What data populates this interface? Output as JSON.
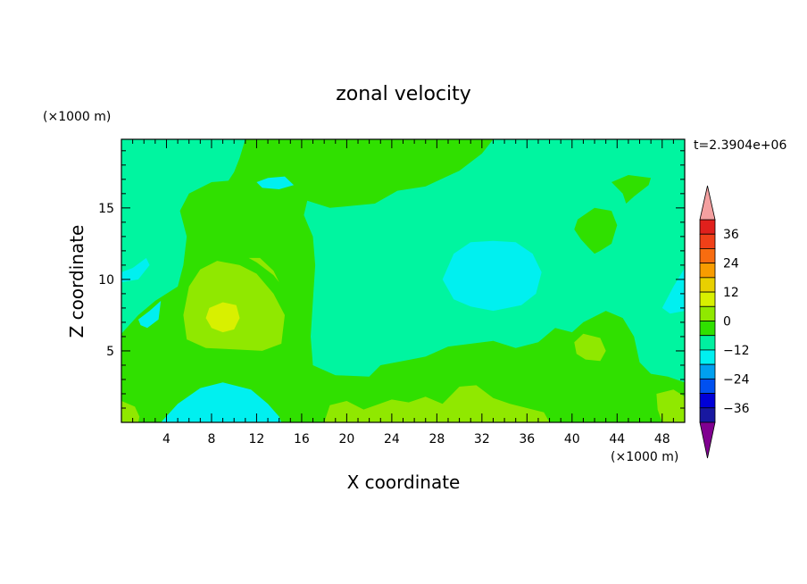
{
  "chart_data": {
    "type": "heatmap",
    "title": "zonal velocity",
    "time_label": "t=2.3904e+06",
    "xlabel": "X coordinate",
    "ylabel": "Z coordinate",
    "x_unit": "(×1000 m)",
    "y_unit": "(×1000 m)",
    "xlim": [
      0,
      50
    ],
    "ylim": [
      0,
      19.8
    ],
    "x_ticks": [
      4,
      8,
      12,
      16,
      20,
      24,
      28,
      32,
      36,
      40,
      44,
      48
    ],
    "y_ticks": [
      5,
      10,
      15
    ],
    "colorbar": {
      "labels": [
        "36",
        "24",
        "12",
        "0",
        "−12",
        "−24",
        "−36"
      ],
      "label_values": [
        36,
        24,
        12,
        0,
        -12,
        -24,
        -36
      ],
      "levels": [
        42,
        36,
        30,
        24,
        18,
        12,
        6,
        0,
        -6,
        -12,
        -18,
        -24,
        -30,
        -36,
        -42
      ],
      "colors": [
        "#e0201c",
        "#f04018",
        "#f86c10",
        "#f89c00",
        "#e8d000",
        "#d8f000",
        "#90e800",
        "#30e000",
        "#00f0a0",
        "#00f0f0",
        "#00a0f0",
        "#0050f0",
        "#0000d8",
        "#1818a0",
        "#501890"
      ],
      "over_color": "#f4a0a0",
      "under_color": "#800090"
    },
    "background_level_color": "#00f5a0",
    "regions": [
      {
        "value": 0,
        "color": "#30e000",
        "points": [
          [
            0,
            6.2
          ],
          [
            1.5,
            7.5
          ],
          [
            3,
            8.5
          ],
          [
            5,
            9.5
          ],
          [
            5.5,
            11
          ],
          [
            5.8,
            13
          ],
          [
            5.2,
            14.8
          ],
          [
            6,
            16
          ],
          [
            8,
            16.8
          ],
          [
            9.5,
            16.9
          ],
          [
            10,
            17.5
          ],
          [
            10.5,
            18.5
          ],
          [
            11,
            19.8
          ],
          [
            33,
            19.8
          ],
          [
            32,
            18.8
          ],
          [
            30,
            17.6
          ],
          [
            27,
            16.5
          ],
          [
            24.5,
            16.2
          ],
          [
            22.5,
            15.3
          ],
          [
            18.5,
            15
          ],
          [
            16.5,
            15.5
          ],
          [
            16.2,
            14.5
          ],
          [
            17,
            13
          ],
          [
            17.2,
            11
          ],
          [
            17,
            8.5
          ],
          [
            16.8,
            6
          ],
          [
            17,
            4
          ],
          [
            19,
            3.3
          ],
          [
            22,
            3.2
          ],
          [
            23,
            4
          ],
          [
            25,
            4.3
          ],
          [
            27,
            4.6
          ],
          [
            29,
            5.3
          ],
          [
            33,
            5.7
          ],
          [
            35,
            5.2
          ],
          [
            37,
            5.6
          ],
          [
            38.5,
            6.6
          ],
          [
            40,
            6.3
          ],
          [
            41,
            7
          ],
          [
            43,
            7.8
          ],
          [
            44.5,
            7.3
          ],
          [
            45.5,
            6
          ],
          [
            46,
            4.2
          ],
          [
            47,
            3.4
          ],
          [
            48.5,
            3.2
          ],
          [
            50,
            2.8
          ],
          [
            50,
            0
          ],
          [
            0,
            0
          ]
        ]
      },
      {
        "value": 0,
        "color": "#30e000",
        "points": [
          [
            40.5,
            14.2
          ],
          [
            42,
            15
          ],
          [
            43.5,
            14.8
          ],
          [
            44,
            13.8
          ],
          [
            43.5,
            12.5
          ],
          [
            42.5,
            12
          ],
          [
            42,
            11.8
          ],
          [
            41.5,
            12.2
          ],
          [
            40.8,
            12.8
          ],
          [
            40.2,
            13.5
          ]
        ]
      },
      {
        "value": 0,
        "color": "#30e000",
        "points": [
          [
            43.5,
            16.8
          ],
          [
            45,
            17.3
          ],
          [
            47,
            17.1
          ],
          [
            46.8,
            16.6
          ],
          [
            45.5,
            15.8
          ],
          [
            44.8,
            15.3
          ],
          [
            44.5,
            16
          ]
        ]
      },
      {
        "value": 0,
        "color": "#30e000",
        "points": [
          [
            0,
            17
          ]
        ],
        "hidden": true
      },
      {
        "value": 6,
        "color": "#90e800",
        "points": [
          [
            5.5,
            7.5
          ],
          [
            6,
            9.5
          ],
          [
            7,
            10.7
          ],
          [
            8.5,
            11.3
          ],
          [
            10.5,
            11
          ],
          [
            12,
            10.4
          ],
          [
            13.5,
            9
          ],
          [
            14.5,
            7.5
          ],
          [
            14.2,
            5.5
          ],
          [
            12.5,
            5
          ],
          [
            10,
            5.1
          ],
          [
            7.5,
            5.2
          ],
          [
            5.8,
            5.8
          ]
        ]
      },
      {
        "value": 12,
        "color": "#d8f000",
        "points": [
          [
            7.5,
            7.3
          ],
          [
            7.8,
            8
          ],
          [
            9,
            8.4
          ],
          [
            10.2,
            8.2
          ],
          [
            10.5,
            7.3
          ],
          [
            10,
            6.5
          ],
          [
            9,
            6.3
          ],
          [
            8,
            6.6
          ]
        ]
      },
      {
        "value": 6,
        "color": "#90e800",
        "points": [
          [
            11.3,
            11.5
          ],
          [
            12,
            11.2
          ],
          [
            13.5,
            10.3
          ],
          [
            14,
            9.8
          ],
          [
            13.5,
            10.6
          ],
          [
            12.3,
            11.5
          ]
        ]
      },
      {
        "value": 6,
        "color": "#90e800",
        "points": [
          [
            40.2,
            5.6
          ],
          [
            41,
            6.2
          ],
          [
            42.5,
            5.9
          ],
          [
            43,
            5
          ],
          [
            42.5,
            4.3
          ],
          [
            41.2,
            4.4
          ],
          [
            40.4,
            4.8
          ]
        ]
      },
      {
        "value": 6,
        "color": "#90e800",
        "points": [
          [
            18,
            0
          ],
          [
            18.5,
            1.2
          ],
          [
            20,
            1.5
          ],
          [
            21.5,
            0.9
          ],
          [
            24,
            1.6
          ],
          [
            25.5,
            1.4
          ],
          [
            27,
            1.8
          ],
          [
            28.5,
            1.3
          ],
          [
            30,
            2.5
          ],
          [
            31.5,
            2.6
          ],
          [
            33,
            1.7
          ],
          [
            34.5,
            1.3
          ],
          [
            36,
            1
          ],
          [
            37.5,
            0.7
          ],
          [
            38,
            0
          ]
        ]
      },
      {
        "value": 6,
        "color": "#90e800",
        "points": [
          [
            0,
            1.5
          ],
          [
            1.2,
            1.1
          ],
          [
            1.6,
            0.4
          ],
          [
            1.5,
            0
          ]
        ],
        "anchor": "corner"
      },
      {
        "value": 6,
        "color": "#90e800",
        "points": [
          [
            47.5,
            2
          ],
          [
            49,
            2.3
          ],
          [
            50,
            1.8
          ],
          [
            50,
            0
          ],
          [
            48,
            0
          ],
          [
            47.6,
            0.9
          ]
        ]
      },
      {
        "value": -6,
        "color": "#00f0f0",
        "points": [
          [
            3.5,
            0
          ],
          [
            5,
            1.3
          ],
          [
            7,
            2.4
          ],
          [
            9,
            2.8
          ],
          [
            11.5,
            2.3
          ],
          [
            13,
            1.3
          ],
          [
            14,
            0.4
          ],
          [
            14.2,
            0
          ]
        ]
      },
      {
        "value": -6,
        "color": "#00f0f0",
        "points": [
          [
            1.5,
            7.2
          ],
          [
            2.5,
            7.8
          ],
          [
            3.5,
            8.5
          ],
          [
            3.3,
            7.2
          ],
          [
            2.3,
            6.6
          ],
          [
            1.7,
            6.8
          ]
        ]
      },
      {
        "value": -6,
        "color": "#00f0f0",
        "points": [
          [
            0,
            10.5
          ],
          [
            1,
            10.8
          ],
          [
            2.2,
            11.5
          ],
          [
            2.5,
            11
          ],
          [
            1.5,
            10
          ],
          [
            0,
            9.8
          ]
        ]
      },
      {
        "value": -6,
        "color": "#00f0f0",
        "points": [
          [
            28.5,
            10
          ],
          [
            29.5,
            11.8
          ],
          [
            31,
            12.6
          ],
          [
            33,
            12.7
          ],
          [
            35,
            12.6
          ],
          [
            36.5,
            11.8
          ],
          [
            37.3,
            10.5
          ],
          [
            36.8,
            9
          ],
          [
            35.5,
            8.2
          ],
          [
            33,
            7.8
          ],
          [
            31,
            8.1
          ],
          [
            29.5,
            8.6
          ]
        ]
      },
      {
        "value": -6,
        "color": "#00f0f0",
        "points": [
          [
            48,
            8
          ],
          [
            49,
            9.5
          ],
          [
            50,
            10.8
          ],
          [
            50,
            7.8
          ],
          [
            48.7,
            7.6
          ]
        ]
      },
      {
        "value": -6,
        "color": "#00f0f0",
        "points": [
          [
            12,
            16.8
          ],
          [
            13,
            17.1
          ],
          [
            14.5,
            17.2
          ],
          [
            15.3,
            16.6
          ],
          [
            14,
            16.3
          ],
          [
            12.5,
            16.4
          ]
        ]
      }
    ]
  }
}
